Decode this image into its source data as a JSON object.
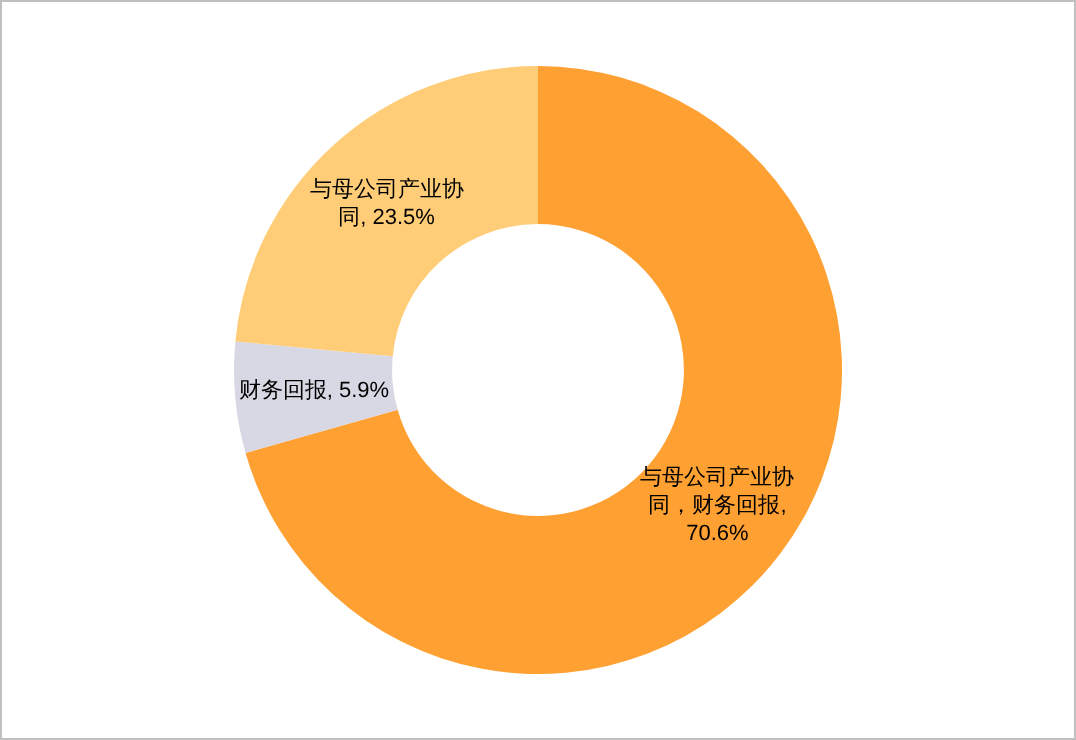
{
  "chart_data": {
    "type": "donut",
    "categories": [
      "与母公司产业协同，财务回报",
      "财务回报",
      "与母公司产业协同"
    ],
    "values": [
      70.6,
      5.9,
      23.5
    ],
    "colors": [
      "#ffa033",
      "#d8d8e4",
      "#ffcd78"
    ],
    "value_labels": [
      ", 70.6%",
      ", 5.9%",
      ", 23.5%"
    ],
    "legend": false
  }
}
